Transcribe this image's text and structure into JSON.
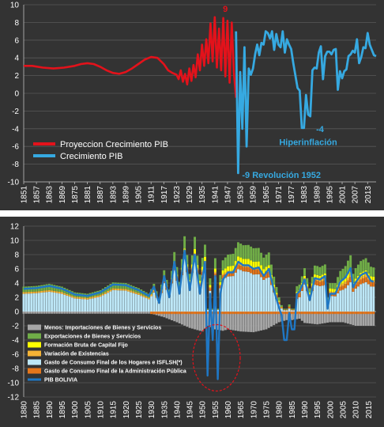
{
  "chart_data": [
    {
      "type": "line",
      "x_ticks": [
        "1851",
        "1857",
        "1863",
        "1869",
        "1875",
        "1881",
        "1887",
        "1893",
        "1899",
        "1905",
        "1911",
        "1917",
        "1923",
        "1929",
        "1935",
        "1941",
        "1947",
        "1953",
        "1959",
        "1965",
        "1971",
        "1977",
        "1983",
        "1989",
        "1995",
        "2001",
        "2007",
        "2013"
      ],
      "y_ticks": [
        "-10",
        "-8",
        "-6",
        "-4",
        "-2",
        "0",
        "2",
        "4",
        "6",
        "8",
        "10"
      ],
      "ylim": [
        -10,
        10
      ],
      "xlim": [
        1851,
        2017
      ],
      "grid": "horizontal",
      "background": "#333333",
      "legend": {
        "position": "bottom-left"
      },
      "series": [
        {
          "name": "Proyeccion Crecimiento PIB",
          "color": "#e3121b",
          "x": [
            1851,
            1855,
            1860,
            1865,
            1870,
            1875,
            1878,
            1881,
            1884,
            1887,
            1890,
            1893,
            1896,
            1899,
            1902,
            1905,
            1908,
            1911,
            1914,
            1917,
            1919,
            1921,
            1923,
            1924,
            1925,
            1926,
            1927,
            1928,
            1929,
            1930,
            1931,
            1932,
            1933,
            1934,
            1935,
            1936,
            1937,
            1938,
            1939,
            1940,
            1941,
            1942,
            1943,
            1944,
            1945,
            1946,
            1947,
            1948,
            1949,
            1950,
            1951
          ],
          "values": [
            3.1,
            3.1,
            2.9,
            2.8,
            2.9,
            3.1,
            3.3,
            3.4,
            3.3,
            3.0,
            2.6,
            2.3,
            2.2,
            2.4,
            2.8,
            3.3,
            3.8,
            4.1,
            4.0,
            3.3,
            2.6,
            2.3,
            2.1,
            1.6,
            2.6,
            1.3,
            2.2,
            1.0,
            2.8,
            1.4,
            3.2,
            1.8,
            4.4,
            2.6,
            5.5,
            3.1,
            6.1,
            3.4,
            7.9,
            3.6,
            8.6,
            2.9,
            7.3,
            2.6,
            8.5,
            1.9,
            8.2,
            1.2,
            8.0,
            2.4,
            -0.5
          ]
        },
        {
          "name": "Crecimiento PIB",
          "color": "#36a9e1",
          "x": [
            1951,
            1952,
            1953,
            1954,
            1955,
            1956,
            1957,
            1958,
            1959,
            1960,
            1961,
            1962,
            1963,
            1964,
            1965,
            1966,
            1967,
            1968,
            1969,
            1970,
            1971,
            1972,
            1973,
            1974,
            1975,
            1976,
            1977,
            1978,
            1979,
            1980,
            1981,
            1982,
            1983,
            1984,
            1985,
            1986,
            1987,
            1988,
            1989,
            1990,
            1991,
            1992,
            1993,
            1994,
            1995,
            1996,
            1997,
            1998,
            1999,
            2000,
            2001,
            2002,
            2003,
            2004,
            2005,
            2006,
            2007,
            2008,
            2009,
            2010,
            2011,
            2012,
            2013,
            2014,
            2015,
            2016,
            2017
          ],
          "values": [
            7.0,
            -9.0,
            2.4,
            -4.0,
            5.2,
            -6.0,
            2.8,
            2.1,
            2.8,
            4.4,
            5.5,
            4.3,
            5.7,
            5.5,
            7.0,
            6.8,
            6.2,
            7.0,
            4.9,
            6.7,
            5.5,
            5.2,
            7.0,
            4.6,
            6.1,
            5.5,
            5.0,
            3.4,
            2.0,
            0.6,
            0.3,
            -3.9,
            -3.9,
            -0.2,
            -2.4,
            -2.6,
            2.6,
            2.9,
            2.8,
            4.6,
            5.3,
            1.6,
            4.2,
            4.7,
            4.7,
            4.4,
            4.9,
            5.0,
            0.4,
            2.5,
            1.7,
            2.5,
            2.7,
            4.2,
            4.4,
            4.8,
            4.6,
            6.1,
            3.4,
            4.1,
            5.2,
            5.1,
            6.8,
            5.5,
            4.9,
            4.3,
            4.2
          ]
        }
      ],
      "annotations": [
        {
          "text": "9",
          "x": 1946,
          "y": 9,
          "color": "#e3121b"
        },
        {
          "text": "Hiperinflación",
          "x": 1985,
          "y": -5.5,
          "color": "#36a9e1"
        },
        {
          "text": "-4",
          "x": 1988,
          "y": -4.0,
          "color": "#36a9e1"
        },
        {
          "text": "-9 Revolución 1952",
          "x": 1952,
          "y": -9,
          "color": "#36a9e1"
        }
      ]
    },
    {
      "type": "bar",
      "stacked": true,
      "x_ticks": [
        "1880",
        "1885",
        "1890",
        "1895",
        "1900",
        "1905",
        "1910",
        "1915",
        "1920",
        "1925",
        "1930",
        "1935",
        "1940",
        "1945",
        "1950",
        "1955",
        "1960",
        "1965",
        "1970",
        "1975",
        "1980",
        "1985",
        "1990",
        "1995",
        "2000",
        "2005",
        "2010",
        "2015"
      ],
      "y_ticks": [
        "12",
        "10",
        "8",
        "6",
        "4",
        "2",
        "0",
        "-2",
        "-4",
        "-6",
        "-8",
        "-10",
        "-12"
      ],
      "ylim": [
        -12,
        12
      ],
      "xlim": [
        1880,
        2018
      ],
      "grid": "horizontal",
      "background": "#333333",
      "legend": {
        "position": "bottom-left"
      },
      "series": [
        {
          "name": "Menos: Importaciones de Bienes y Servicios",
          "color": "#a6a6a6"
        },
        {
          "name": "Exportaciones de Bienes y Servicios",
          "color": "#70ad47"
        },
        {
          "name": "Formación Bruta de Capital Fijo",
          "color": "#ffff00"
        },
        {
          "name": "Variación de Existencias",
          "color": "#f5b335"
        },
        {
          "name": "Gasto de Consumo Final de los Hogares e ISFLSH(*)",
          "color": "#bde7f7"
        },
        {
          "name": "Gasto de Consumo Final de la Administración Pública",
          "color": "#e3761c"
        },
        {
          "name": "PIB BOLIVIA",
          "color": "#1f77c4"
        }
      ],
      "pib_bolivia": {
        "x": [
          1880,
          1885,
          1890,
          1895,
          1900,
          1905,
          1910,
          1915,
          1920,
          1925,
          1929,
          1931,
          1933,
          1935,
          1937,
          1939,
          1941,
          1943,
          1945,
          1947,
          1949,
          1951,
          1952,
          1953,
          1954,
          1955,
          1956,
          1957,
          1958,
          1960,
          1962,
          1964,
          1966,
          1968,
          1970,
          1972,
          1974,
          1976,
          1978,
          1980,
          1981,
          1982,
          1983,
          1984,
          1985,
          1986,
          1987,
          1988,
          1990,
          1992,
          1994,
          1996,
          1998,
          1999,
          2000,
          2002,
          2004,
          2006,
          2008,
          2009,
          2010,
          2012,
          2014,
          2016,
          2017
        ],
        "values": [
          3.2,
          3.3,
          3.6,
          3.2,
          2.4,
          2.2,
          2.7,
          3.8,
          3.7,
          3.0,
          2.2,
          3.5,
          1.2,
          5.0,
          2.0,
          7.0,
          2.5,
          8.6,
          3.0,
          8.0,
          2.5,
          7.0,
          -9.0,
          2.5,
          -4.0,
          5.0,
          -9.5,
          2.5,
          4.5,
          5.5,
          5.5,
          7.0,
          6.5,
          6.5,
          6.0,
          6.2,
          5.0,
          6.0,
          3.0,
          0.5,
          -0.5,
          -4.0,
          -4.0,
          -0.2,
          -2.5,
          -2.5,
          2.5,
          2.8,
          4.5,
          1.6,
          4.7,
          4.5,
          5.0,
          0.4,
          2.5,
          2.5,
          4.2,
          4.8,
          6.1,
          3.4,
          4.1,
          5.1,
          5.5,
          4.3,
          4.2
        ]
      },
      "components": {
        "x": [
          1880,
          1885,
          1890,
          1895,
          1900,
          1905,
          1910,
          1915,
          1920,
          1925,
          1930,
          1935,
          1940,
          1945,
          1950,
          1952,
          1955,
          1958,
          1960,
          1965,
          1970,
          1975,
          1980,
          1983,
          1985,
          1988,
          1990,
          1995,
          2000,
          2005,
          2010,
          2015,
          2017
        ],
        "consumo_hogares": [
          3.2,
          3.3,
          3.5,
          3.2,
          2.6,
          2.3,
          2.8,
          3.6,
          3.6,
          3.0,
          2.4,
          4.0,
          5.0,
          6.5,
          6.0,
          3.0,
          4.0,
          4.5,
          4.5,
          6.0,
          5.5,
          5.0,
          2.0,
          1.0,
          1.0,
          2.0,
          3.5,
          3.5,
          3.0,
          2.8,
          3.5,
          3.5,
          3.5
        ],
        "exportaciones": [
          1.0,
          1.0,
          1.1,
          1.0,
          0.9,
          0.8,
          0.9,
          1.0,
          1.0,
          0.9,
          0.8,
          1.0,
          1.2,
          1.5,
          1.5,
          1.0,
          1.2,
          1.4,
          1.5,
          2.0,
          2.0,
          1.8,
          1.0,
          0.6,
          0.6,
          0.8,
          1.0,
          1.2,
          1.0,
          1.4,
          1.6,
          1.4,
          1.3
        ],
        "formacion_capital": [
          0.0,
          0.0,
          0.0,
          0.0,
          0.0,
          0.0,
          0.0,
          0.0,
          0.0,
          0.0,
          0.0,
          0.2,
          0.3,
          0.5,
          0.6,
          0.3,
          0.4,
          0.5,
          0.6,
          0.9,
          0.9,
          0.7,
          0.2,
          0.1,
          0.1,
          0.2,
          0.3,
          0.5,
          0.6,
          0.5,
          0.6,
          0.5,
          0.5
        ],
        "variacion_existencias": [
          0.3,
          0.3,
          0.3,
          0.3,
          0.3,
          0.3,
          0.3,
          0.3,
          0.3,
          0.3,
          0.3,
          0.3,
          0.3,
          0.3,
          0.3,
          0.2,
          0.2,
          0.2,
          0.2,
          0.3,
          0.3,
          0.3,
          0.2,
          0.1,
          0.1,
          0.2,
          0.2,
          0.3,
          0.3,
          0.3,
          0.3,
          0.3,
          0.3
        ],
        "consumo_publico": [
          0.0,
          0.0,
          0.0,
          0.0,
          0.0,
          0.0,
          0.0,
          0.0,
          0.0,
          0.0,
          0.0,
          0.3,
          0.4,
          0.5,
          0.5,
          0.4,
          0.4,
          0.5,
          0.5,
          0.6,
          0.7,
          0.7,
          0.6,
          0.5,
          0.6,
          0.6,
          0.6,
          0.6,
          0.5,
          0.5,
          0.6,
          0.6,
          0.6
        ],
        "importaciones": [
          -0.3,
          -0.3,
          -0.3,
          -0.3,
          -0.3,
          -0.3,
          -0.3,
          -0.3,
          -0.3,
          -0.3,
          -0.3,
          -0.8,
          -1.5,
          -2.3,
          -2.8,
          -2.0,
          -2.5,
          -2.7,
          -2.5,
          -2.8,
          -2.9,
          -2.5,
          -1.5,
          -1.2,
          -1.2,
          -1.0,
          -1.6,
          -1.8,
          -1.5,
          -1.5,
          -2.0,
          -2.0,
          -2.0
        ]
      }
    }
  ]
}
